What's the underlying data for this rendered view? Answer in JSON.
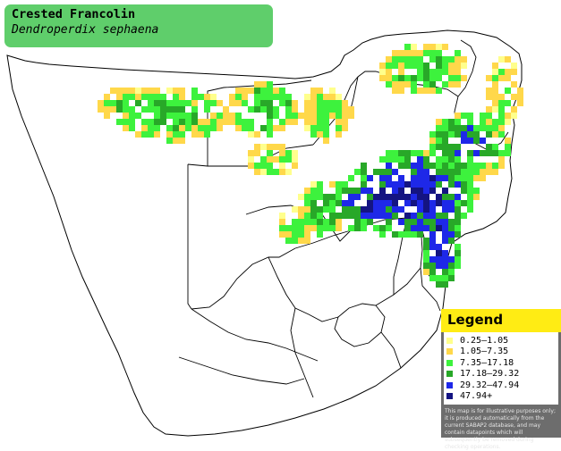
{
  "title": {
    "common_name": "Crested Francolin",
    "scientific_name": "Dendroperdix sephaena"
  },
  "legend": {
    "heading": "Legend",
    "items": [
      {
        "label": "0.25–1.05",
        "color": "#ffff8c"
      },
      {
        "label": "1.05–7.35",
        "color": "#ffd84a"
      },
      {
        "label": "7.35–17.18",
        "color": "#3df23d"
      },
      {
        "label": "17.18–29.32",
        "color": "#28a828"
      },
      {
        "label": "29.32–47.94",
        "color": "#1e28e8"
      },
      {
        "label": "47.94+",
        "color": "#141482"
      }
    ],
    "note": "This map is for illustrative purposes only; it is produced automatically from the current SABAP2 database, and may contain datapoints which will subsequently be removed during checking operations."
  },
  "colors": {
    "title_background": "#5fce6b",
    "legend_header": "#ffec14",
    "legend_panel": "#6d6d6d",
    "map_outline": "#000000",
    "land": "#ffffff"
  }
}
